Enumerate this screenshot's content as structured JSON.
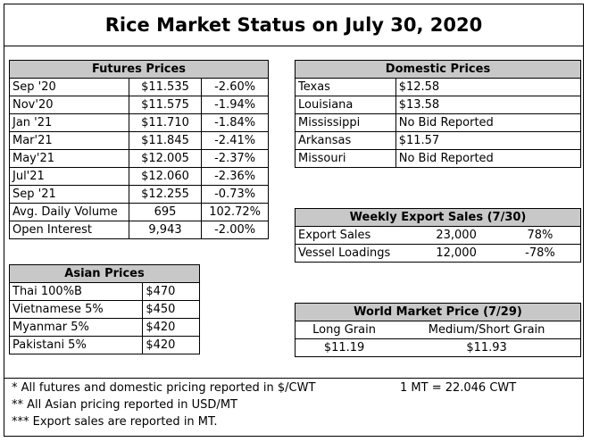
{
  "title": "Rice Market Status on July 30, 2020",
  "futures": {
    "header": "Futures Prices",
    "rows": [
      {
        "month": "Sep '20",
        "price": "$11.535",
        "change": "-2.60%"
      },
      {
        "month": "Nov'20",
        "price": "$11.575",
        "change": "-1.94%"
      },
      {
        "month": "Jan '21",
        "price": "$11.710",
        "change": "-1.84%"
      },
      {
        "month": "Mar'21",
        "price": "$11.845",
        "change": "-2.41%"
      },
      {
        "month": "May'21",
        "price": "$12.005",
        "change": "-2.37%"
      },
      {
        "month": "Jul'21",
        "price": "$12.060",
        "change": "-2.36%"
      },
      {
        "month": "Sep '21",
        "price": "$12.255",
        "change": "-0.73%"
      }
    ],
    "volume": {
      "label": "Avg. Daily Volume",
      "value": "695",
      "change": "102.72%"
    },
    "open_interest": {
      "label": "Open Interest",
      "value": "9,943",
      "change": "-2.00%"
    }
  },
  "domestic": {
    "header": "Domestic Prices",
    "rows": [
      {
        "state": "Texas",
        "price": "$12.58"
      },
      {
        "state": "Louisiana",
        "price": "$13.58"
      },
      {
        "state": "Mississippi",
        "price": "No Bid Reported"
      },
      {
        "state": "Arkansas",
        "price": "$11.57"
      },
      {
        "state": "Missouri",
        "price": "No Bid Reported"
      }
    ]
  },
  "export": {
    "header": "Weekly Export Sales (7/30)",
    "rows": [
      {
        "label": "Export Sales",
        "value": "23,000",
        "change": "78%"
      },
      {
        "label": "Vessel Loadings",
        "value": "12,000",
        "change": "-78%"
      }
    ]
  },
  "asian": {
    "header": "Asian Prices",
    "rows": [
      {
        "label": "Thai 100%B",
        "price": "$470"
      },
      {
        "label": "Vietnamese 5%",
        "price": "$450"
      },
      {
        "label": "Myanmar 5%",
        "price": "$420"
      },
      {
        "label": "Pakistani 5%",
        "price": "$420"
      }
    ]
  },
  "world": {
    "header": "World Market Price (7/29)",
    "long_label": "Long Grain",
    "medium_label": "Medium/Short Grain",
    "long_price": "$11.19",
    "medium_price": "$11.93"
  },
  "notes": {
    "n1": "* All futures and domestic pricing reported in $/CWT",
    "n2": "** All Asian pricing reported in USD/MT",
    "n3": "*** Export sales are reported in MT.",
    "conversion": "1 MT = 22.046 CWT"
  }
}
